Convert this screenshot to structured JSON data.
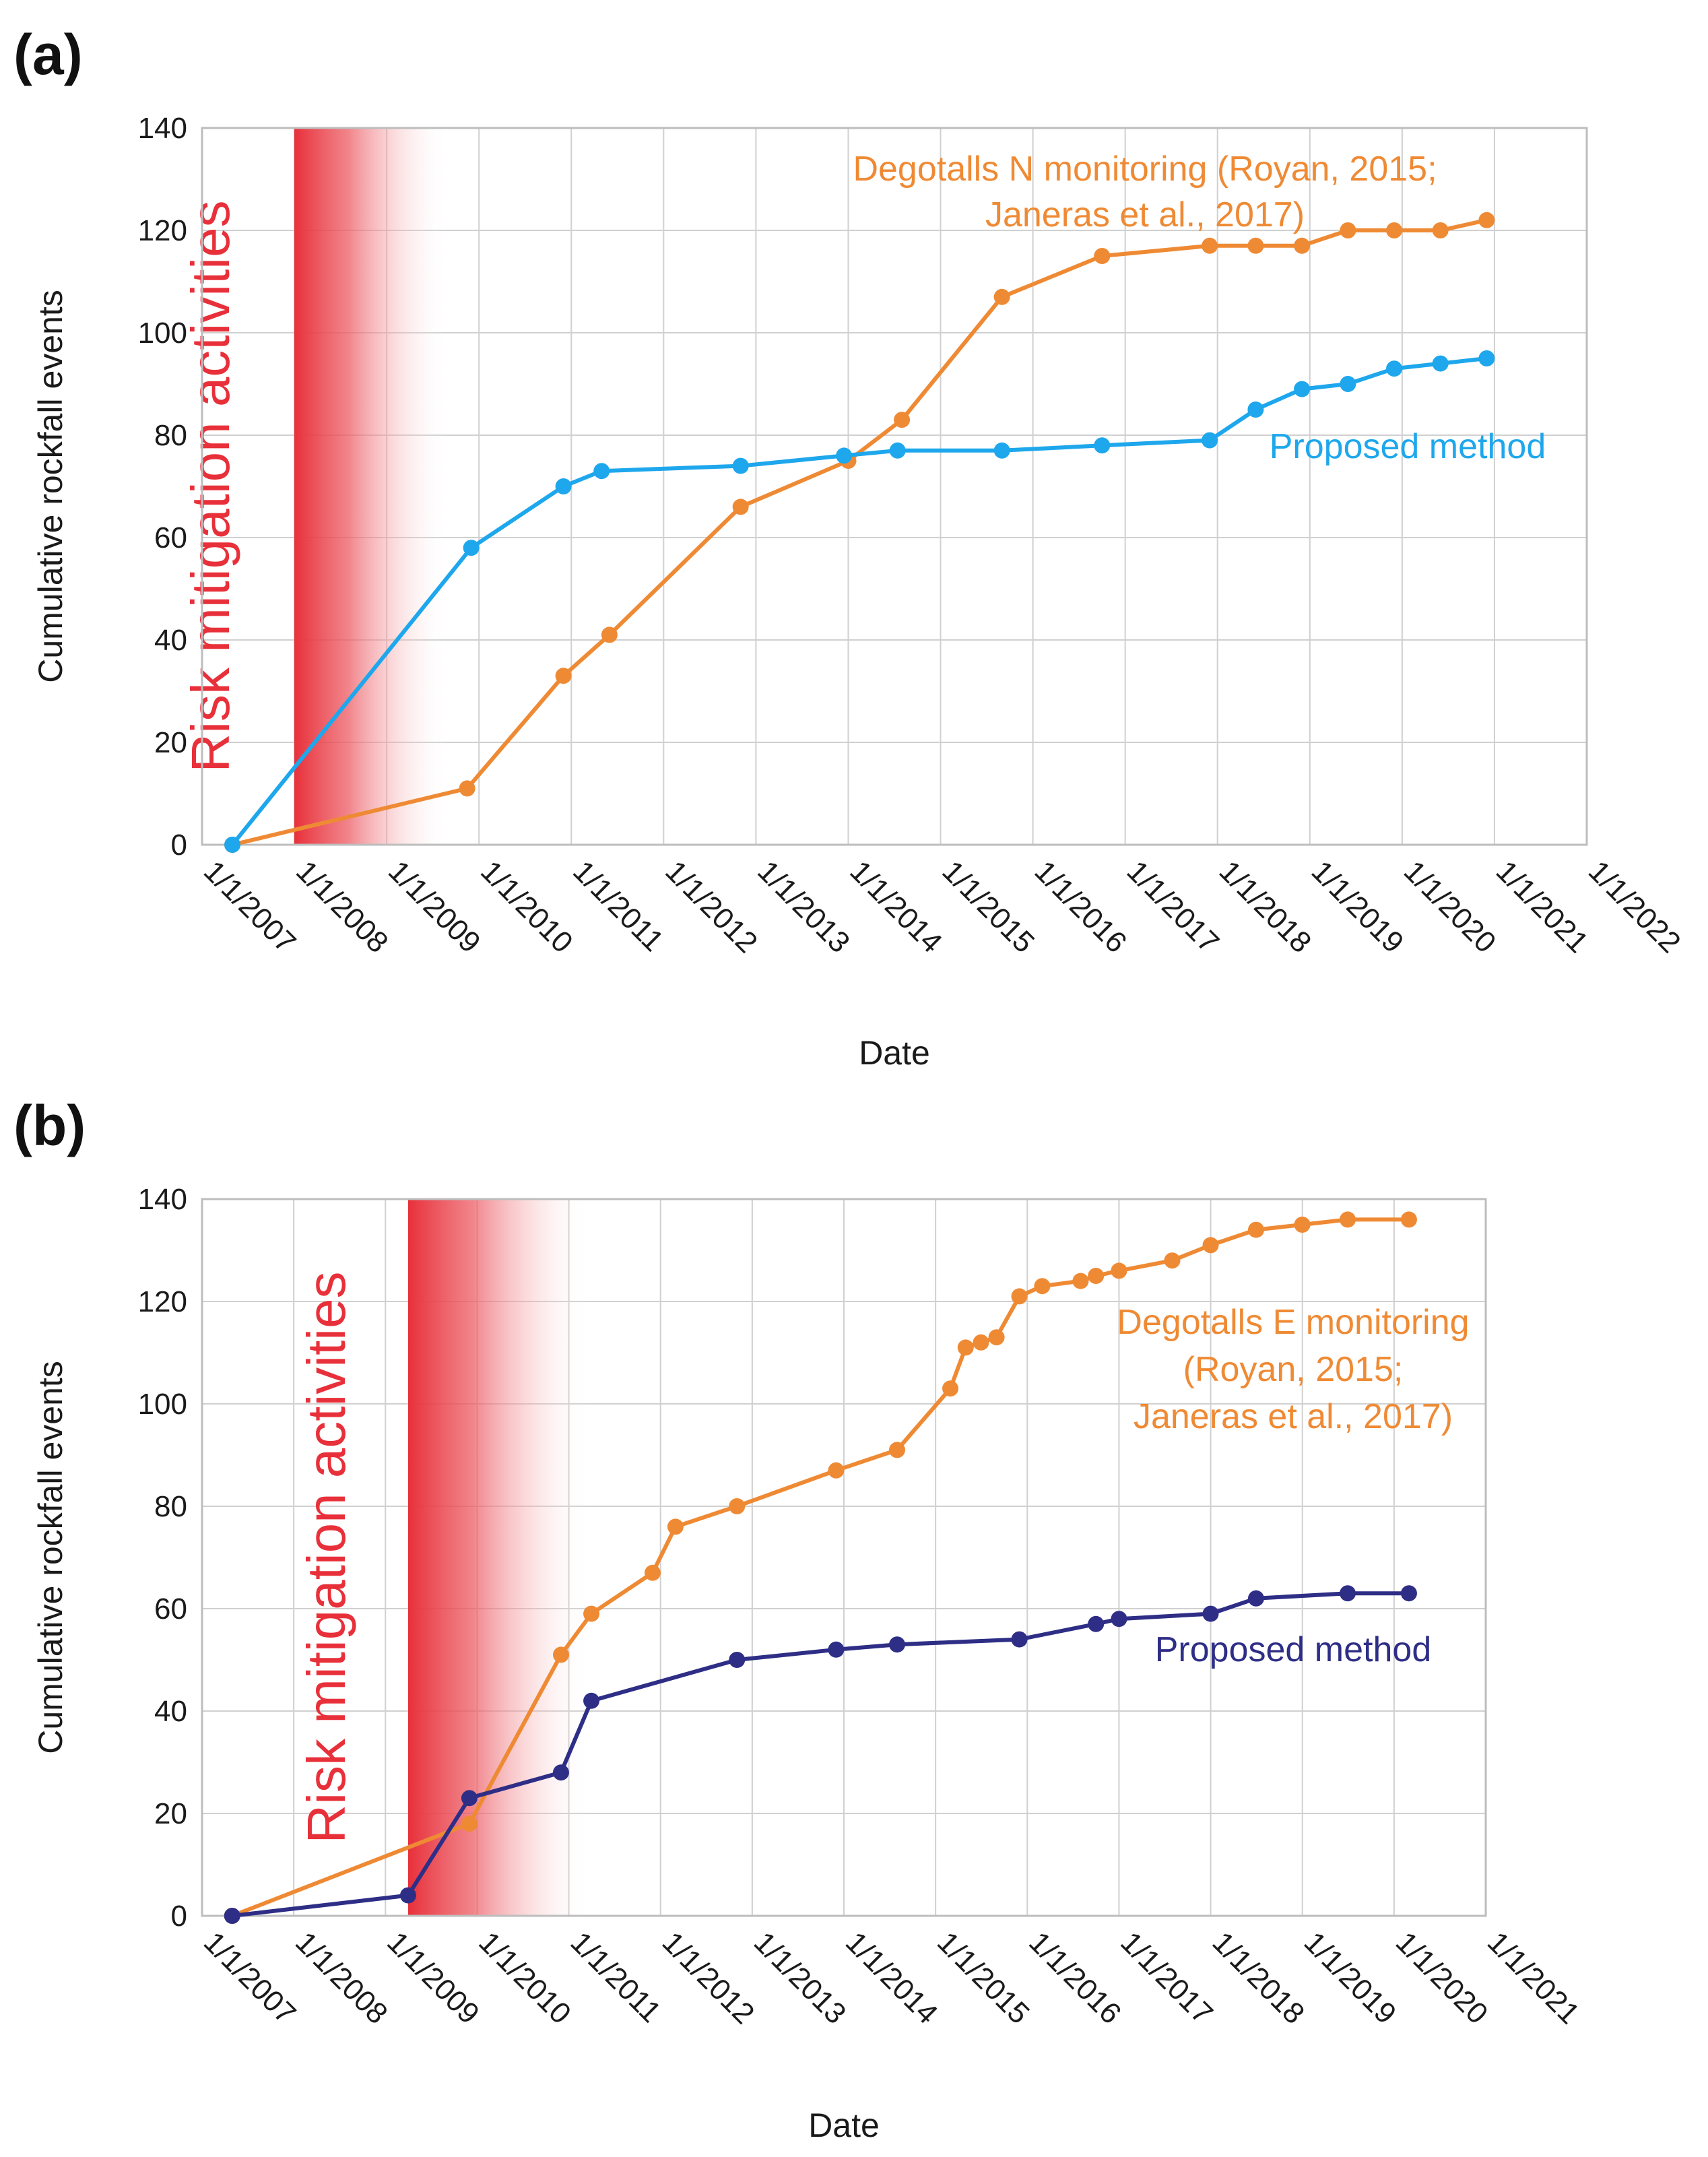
{
  "colors": {
    "orange": "#ef8a34",
    "blue": "#1ea7ec",
    "navy": "#2e2e86",
    "red": "#e8303a",
    "grid": "#d0d0d0"
  },
  "chart_data": [
    {
      "type": "line",
      "panel_label": "(a)",
      "xlabel": "Date",
      "ylabel": "Cumulative rockfall events",
      "x_ticks": [
        "1/1/2007",
        "1/1/2008",
        "1/1/2009",
        "1/1/2010",
        "1/1/2011",
        "1/1/2012",
        "1/1/2013",
        "1/1/2014",
        "1/1/2015",
        "1/1/2016",
        "1/1/2017",
        "1/1/2018",
        "1/1/2019",
        "1/1/2020",
        "1/1/2021",
        "1/1/2022"
      ],
      "xlim": [
        "2007-01-01",
        "2022-01-01"
      ],
      "ylim": [
        0,
        140
      ],
      "y_ticks": [
        0,
        20,
        40,
        60,
        80,
        100,
        120,
        140
      ],
      "grid": true,
      "mitigation_band": {
        "label": "Risk mitigation activities",
        "start": "2008-01-01",
        "end": "2009-09-01"
      },
      "series": [
        {
          "name": "Degotalls N monitoring (Royan, 2015; Janeras et al., 2017)",
          "annotation_lines": [
            "Degotalls N monitoring (Royan, 2015;",
            "Janeras et al., 2017)"
          ],
          "color_key": "orange",
          "points": [
            [
              "2007-05-01",
              0
            ],
            [
              "2009-11-15",
              11
            ],
            [
              "2010-12-01",
              33
            ],
            [
              "2011-06-01",
              41
            ],
            [
              "2012-11-01",
              66
            ],
            [
              "2014-01-01",
              75
            ],
            [
              "2014-08-01",
              83
            ],
            [
              "2015-09-01",
              107
            ],
            [
              "2016-10-01",
              115
            ],
            [
              "2017-12-01",
              117
            ],
            [
              "2018-06-01",
              117
            ],
            [
              "2018-12-01",
              117
            ],
            [
              "2019-06-01",
              120
            ],
            [
              "2019-12-01",
              120
            ],
            [
              "2020-06-01",
              120
            ],
            [
              "2020-12-01",
              122
            ]
          ]
        },
        {
          "name": "Proposed method",
          "annotation_lines": [
            "Proposed method"
          ],
          "color_key": "blue",
          "points": [
            [
              "2007-05-01",
              0
            ],
            [
              "2009-12-01",
              58
            ],
            [
              "2010-12-01",
              70
            ],
            [
              "2011-05-01",
              73
            ],
            [
              "2012-11-01",
              74
            ],
            [
              "2013-12-15",
              76
            ],
            [
              "2014-07-15",
              77
            ],
            [
              "2015-09-01",
              77
            ],
            [
              "2016-10-01",
              78
            ],
            [
              "2017-12-01",
              79
            ],
            [
              "2018-06-01",
              85
            ],
            [
              "2018-12-01",
              89
            ],
            [
              "2019-06-01",
              90
            ],
            [
              "2019-12-01",
              93
            ],
            [
              "2020-06-01",
              94
            ],
            [
              "2020-12-01",
              95
            ]
          ]
        }
      ]
    },
    {
      "type": "line",
      "panel_label": "(b)",
      "xlabel": "Date",
      "ylabel": "Cumulative rockfall events",
      "x_ticks": [
        "1/1/2007",
        "1/1/2008",
        "1/1/2009",
        "1/1/2010",
        "1/1/2011",
        "1/1/2012",
        "1/1/2013",
        "1/1/2014",
        "1/1/2015",
        "1/1/2016",
        "1/1/2017",
        "1/1/2018",
        "1/1/2019",
        "1/1/2020",
        "1/1/2021"
      ],
      "xlim": [
        "2007-01-01",
        "2021-01-01"
      ],
      "ylim": [
        0,
        140
      ],
      "y_ticks": [
        0,
        20,
        40,
        60,
        80,
        100,
        120,
        140
      ],
      "grid": true,
      "mitigation_band": {
        "label": "Risk mitigation activities",
        "start": "2009-04-01",
        "end": "2011-04-01"
      },
      "series": [
        {
          "name": "Degotalls E monitoring (Royan, 2015; Janeras et al., 2017)",
          "annotation_lines": [
            "Degotalls E monitoring",
            "(Royan, 2015;",
            "Janeras et al., 2017)"
          ],
          "color_key": "orange",
          "points": [
            [
              "2007-05-01",
              0
            ],
            [
              "2009-12-01",
              18
            ],
            [
              "2010-12-01",
              51
            ],
            [
              "2011-04-01",
              59
            ],
            [
              "2011-12-01",
              67
            ],
            [
              "2012-03-01",
              76
            ],
            [
              "2012-11-01",
              80
            ],
            [
              "2013-12-01",
              87
            ],
            [
              "2014-08-01",
              91
            ],
            [
              "2015-03-01",
              103
            ],
            [
              "2015-05-01",
              111
            ],
            [
              "2015-07-01",
              112
            ],
            [
              "2015-09-01",
              113
            ],
            [
              "2015-12-01",
              121
            ],
            [
              "2016-03-01",
              123
            ],
            [
              "2016-08-01",
              124
            ],
            [
              "2016-10-01",
              125
            ],
            [
              "2017-01-01",
              126
            ],
            [
              "2017-08-01",
              128
            ],
            [
              "2018-01-01",
              131
            ],
            [
              "2018-07-01",
              134
            ],
            [
              "2019-01-01",
              135
            ],
            [
              "2019-07-01",
              136
            ],
            [
              "2020-03-01",
              136
            ]
          ]
        },
        {
          "name": "Proposed method",
          "annotation_lines": [
            "Proposed method"
          ],
          "color_key": "navy",
          "points": [
            [
              "2007-05-01",
              0
            ],
            [
              "2009-04-01",
              4
            ],
            [
              "2009-12-01",
              23
            ],
            [
              "2010-12-01",
              28
            ],
            [
              "2011-04-01",
              42
            ],
            [
              "2012-11-01",
              50
            ],
            [
              "2013-12-01",
              52
            ],
            [
              "2014-08-01",
              53
            ],
            [
              "2015-12-01",
              54
            ],
            [
              "2016-10-01",
              57
            ],
            [
              "2017-01-01",
              58
            ],
            [
              "2018-01-01",
              59
            ],
            [
              "2018-07-01",
              62
            ],
            [
              "2019-07-01",
              63
            ],
            [
              "2020-03-01",
              63
            ]
          ]
        }
      ]
    }
  ]
}
